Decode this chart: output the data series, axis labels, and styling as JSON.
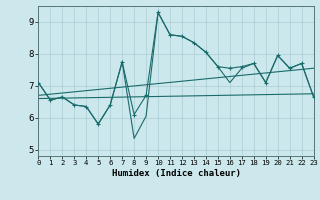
{
  "xlabel": "Humidex (Indice chaleur)",
  "bg_color": "#cce8ec",
  "line_color": "#1a6b6b",
  "grid_color": "#aacdd4",
  "x_ticks": [
    0,
    1,
    2,
    3,
    4,
    5,
    6,
    7,
    8,
    9,
    10,
    11,
    12,
    13,
    14,
    15,
    16,
    17,
    18,
    19,
    20,
    21,
    22,
    23
  ],
  "y_ticks": [
    5,
    6,
    7,
    8,
    9
  ],
  "xlim": [
    0,
    23
  ],
  "ylim": [
    4.8,
    9.5
  ],
  "line1_x": [
    0,
    1,
    2,
    3,
    4,
    5,
    6,
    7,
    8,
    9,
    10,
    11,
    12,
    13,
    14,
    15,
    16,
    17,
    18,
    19,
    20,
    21,
    22,
    23
  ],
  "line1_y": [
    7.1,
    6.55,
    6.65,
    6.4,
    6.35,
    5.8,
    6.4,
    7.75,
    6.1,
    6.7,
    9.3,
    8.6,
    8.55,
    8.35,
    8.05,
    7.6,
    7.55,
    7.6,
    7.7,
    7.1,
    7.95,
    7.55,
    7.7,
    6.65
  ],
  "line2_x": [
    0,
    1,
    2,
    3,
    4,
    5,
    6,
    7,
    8,
    9,
    10,
    11,
    12,
    13,
    14,
    15,
    16,
    17,
    18,
    19,
    20,
    21,
    22,
    23
  ],
  "line2_y": [
    7.1,
    6.55,
    6.65,
    6.4,
    6.35,
    5.8,
    6.4,
    7.75,
    5.35,
    6.05,
    9.3,
    8.6,
    8.55,
    8.35,
    8.05,
    7.6,
    7.1,
    7.55,
    7.7,
    7.1,
    7.95,
    7.55,
    7.7,
    6.65
  ],
  "line3_x": [
    0,
    23
  ],
  "line3_y": [
    6.7,
    7.55
  ],
  "line4_x": [
    0,
    23
  ],
  "line4_y": [
    6.6,
    6.75
  ]
}
